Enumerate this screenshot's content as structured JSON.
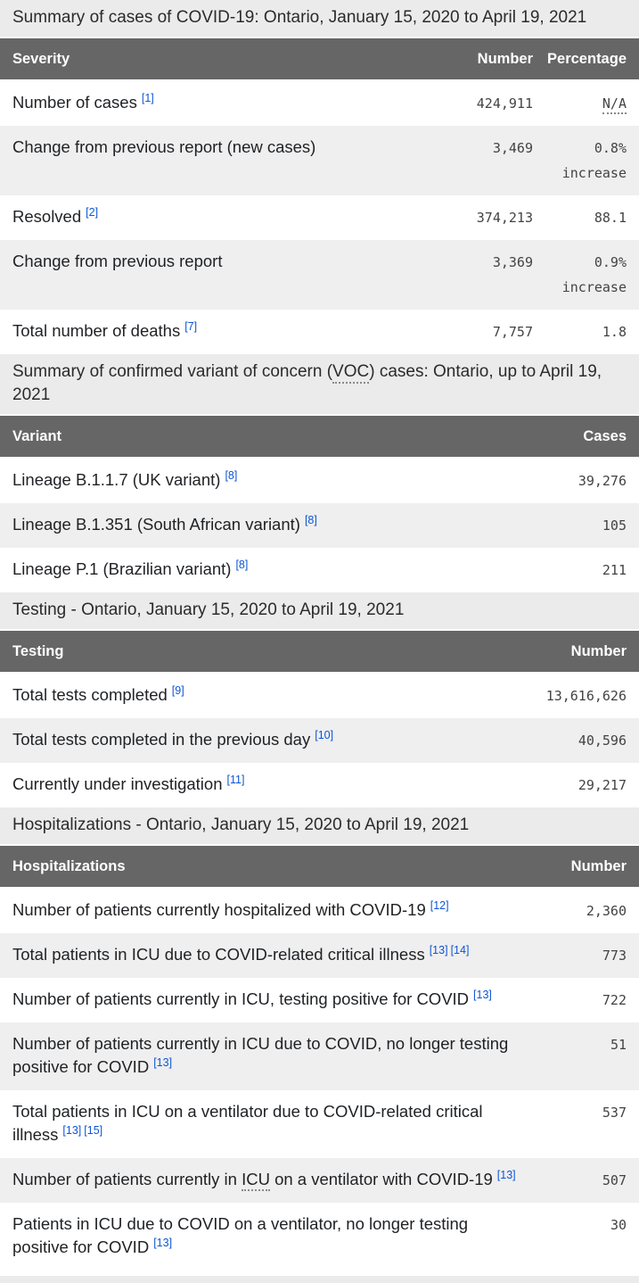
{
  "colors": {
    "table_header_bg": "#666666",
    "table_header_text": "#ffffff",
    "section_title_bg": "#ebebeb",
    "row_alt_bg": "#efefef",
    "body_text": "#1f2124",
    "number_text": "#434343",
    "reference_link_blue": "#0d55d6"
  },
  "sections": [
    {
      "title": [
        {
          "text": "Summary of cases of COVID-19: Ontario, January 15, 2020 to April 19, 2021"
        }
      ],
      "columns": [
        "Severity",
        "Number",
        "Percentage"
      ],
      "rows": [
        {
          "label": [
            {
              "text": "Number of cases"
            }
          ],
          "refs": [
            "[1]"
          ],
          "number": "424,911",
          "pct": {
            "text": "N/A",
            "abbr": true
          }
        },
        {
          "label": [
            {
              "text": "Change from previous report (new cases)"
            }
          ],
          "refs": [],
          "number": "3,469",
          "pct": {
            "text": "0.8%",
            "line2": "increase"
          }
        },
        {
          "label": [
            {
              "text": "Resolved"
            }
          ],
          "refs": [
            "[2]"
          ],
          "number": "374,213",
          "pct": {
            "text": "88.1"
          }
        },
        {
          "label": [
            {
              "text": "Change from previous report"
            }
          ],
          "refs": [],
          "number": "3,369",
          "pct": {
            "text": "0.9%",
            "line2": "increase"
          }
        },
        {
          "label": [
            {
              "text": "Total number of deaths"
            }
          ],
          "refs": [
            "[7]"
          ],
          "number": "7,757",
          "pct": {
            "text": "1.8"
          }
        }
      ]
    },
    {
      "title": [
        {
          "text": "Summary of confirmed variant of concern ("
        },
        {
          "abbr": "VOC"
        },
        {
          "text": ") cases: Ontario, up to April 19, 2021"
        }
      ],
      "columns": [
        "Variant",
        "Cases"
      ],
      "rows": [
        {
          "label": [
            {
              "text": "Lineage B.1.1.7 (UK variant)"
            }
          ],
          "refs": [
            "[8]"
          ],
          "number": "39,276"
        },
        {
          "label": [
            {
              "text": "Lineage B.1.351 (South African variant)"
            }
          ],
          "refs": [
            "[8]"
          ],
          "number": "105"
        },
        {
          "label": [
            {
              "text": "Lineage P.1 (Brazilian variant)"
            }
          ],
          "refs": [
            "[8]"
          ],
          "number": "211"
        }
      ]
    },
    {
      "title": [
        {
          "text": "Testing - Ontario, January 15, 2020 to April 19, 2021"
        }
      ],
      "columns": [
        "Testing",
        "Number"
      ],
      "rows": [
        {
          "label": [
            {
              "text": "Total tests completed"
            }
          ],
          "refs": [
            "[9]"
          ],
          "number": "13,616,626"
        },
        {
          "label": [
            {
              "text": "Total tests completed in the previous day"
            }
          ],
          "refs": [
            "[10]"
          ],
          "number": "40,596"
        },
        {
          "label": [
            {
              "text": "Currently under investigation"
            }
          ],
          "refs": [
            "[11]"
          ],
          "number": "29,217"
        }
      ]
    },
    {
      "title": [
        {
          "text": "Hospitalizations - Ontario, January 15, 2020 to April 19, 2021"
        }
      ],
      "columns": [
        "Hospitalizations",
        "Number"
      ],
      "rows": [
        {
          "label": [
            {
              "text": "Number of patients currently hospitalized with COVID-19"
            }
          ],
          "refs": [
            "[12]"
          ],
          "number": "2,360"
        },
        {
          "label": [
            {
              "text": "Total patients in ICU due to COVID-related critical illness"
            }
          ],
          "refs": [
            "[13]",
            "[14]"
          ],
          "number": "773"
        },
        {
          "label": [
            {
              "text": "Number of patients currently in ICU, testing positive for COVID"
            }
          ],
          "refs": [
            "[13]"
          ],
          "number": "722"
        },
        {
          "label": [
            {
              "text": "Number of patients currently in ICU due to COVID, no longer testing positive for COVID"
            }
          ],
          "refs": [
            "[13]"
          ],
          "number": "51"
        },
        {
          "label": [
            {
              "text": "Total patients in ICU on a ventilator due to COVID-related critical illness"
            }
          ],
          "refs": [
            "[13]",
            "[15]"
          ],
          "number": "537"
        },
        {
          "label": [
            {
              "text": "Number of patients currently in "
            },
            {
              "abbr": "ICU"
            },
            {
              "text": " on a ventilator with COVID-19"
            }
          ],
          "refs": [
            "[13]"
          ],
          "number": "507"
        },
        {
          "label": [
            {
              "text": "Patients in ICU due to COVID on a ventilator, no longer testing positive for COVID"
            }
          ],
          "refs": [
            "[13]"
          ],
          "number": "30"
        }
      ]
    }
  ]
}
